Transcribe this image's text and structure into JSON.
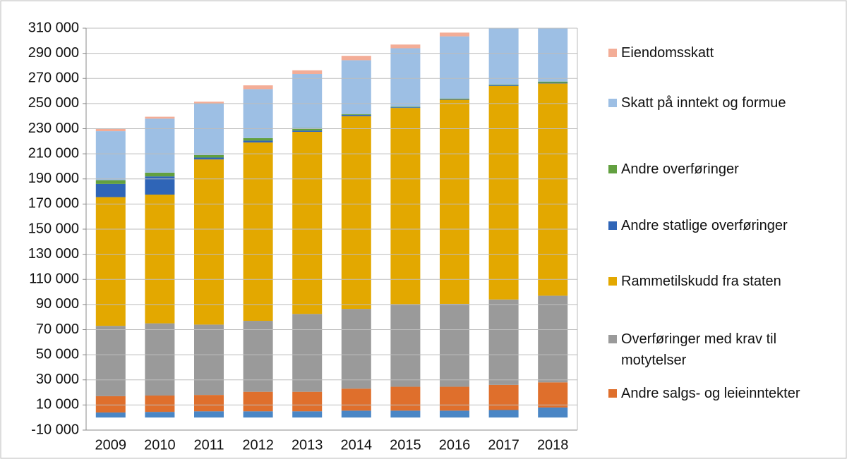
{
  "chart_data": {
    "type": "stacked_bar",
    "categories": [
      "2009",
      "2010",
      "2011",
      "2012",
      "2013",
      "2014",
      "2015",
      "2016",
      "2017",
      "2018"
    ],
    "series": [
      {
        "name": null,
        "color": "#4a86c5",
        "values": [
          4000,
          4500,
          5000,
          5000,
          5000,
          5500,
          5500,
          5500,
          6000,
          8000
        ]
      },
      {
        "name": "Andre salgs- og leieinntekter",
        "color": "#df6f2c",
        "values": [
          13000,
          13000,
          13000,
          15500,
          15500,
          17500,
          19000,
          19000,
          20000,
          20000
        ]
      },
      {
        "name": "Overføringer med krav til motytelser",
        "color": "#9a9a9a",
        "values": [
          56000,
          57500,
          56000,
          56500,
          62000,
          63500,
          65500,
          66000,
          68000,
          69000
        ]
      },
      {
        "name": "Rammetilskudd fra staten",
        "color": "#e3a800",
        "values": [
          102500,
          102500,
          131500,
          142000,
          145000,
          153500,
          156500,
          162500,
          170000,
          169000
        ]
      },
      {
        "name": "Andre statlige overføringer",
        "color": "#2f65b7",
        "values": [
          10500,
          14500,
          1500,
          1500,
          1000,
          1000,
          500,
          500,
          500,
          500
        ]
      },
      {
        "name": "Andre overføringer",
        "color": "#62a040",
        "values": [
          3000,
          3000,
          2000,
          2000,
          2000,
          500,
          500,
          500,
          500,
          1000
        ]
      },
      {
        "name": "Skatt på inntekt og formue",
        "color": "#9dbfe4",
        "values": [
          39000,
          43000,
          41000,
          39000,
          43000,
          43000,
          46500,
          49500,
          47000,
          48000
        ]
      },
      {
        "name": "Eiendomsskatt",
        "color": "#f3ad97",
        "values": [
          2000,
          1500,
          1500,
          3000,
          3000,
          3500,
          3000,
          3000,
          3000,
          3000
        ]
      }
    ],
    "ylim": [
      -10000,
      310000
    ],
    "yticks": [
      {
        "value": -10000,
        "label": "-10 000"
      },
      {
        "value": 10000,
        "label": "10 000"
      },
      {
        "value": 30000,
        "label": "30 000"
      },
      {
        "value": 50000,
        "label": "50 000"
      },
      {
        "value": 70000,
        "label": "70 000"
      },
      {
        "value": 90000,
        "label": "90 000"
      },
      {
        "value": 110000,
        "label": "110 000"
      },
      {
        "value": 130000,
        "label": "130 000"
      },
      {
        "value": 150000,
        "label": "150 000"
      },
      {
        "value": 170000,
        "label": "170 000"
      },
      {
        "value": 190000,
        "label": "190 000"
      },
      {
        "value": 210000,
        "label": "210 000"
      },
      {
        "value": 230000,
        "label": "230 000"
      },
      {
        "value": 250000,
        "label": "250 000"
      },
      {
        "value": 270000,
        "label": "270 000"
      },
      {
        "value": 290000,
        "label": "290 000"
      },
      {
        "value": 310000,
        "label": "310 000"
      }
    ],
    "grid": true,
    "legend": "right"
  }
}
